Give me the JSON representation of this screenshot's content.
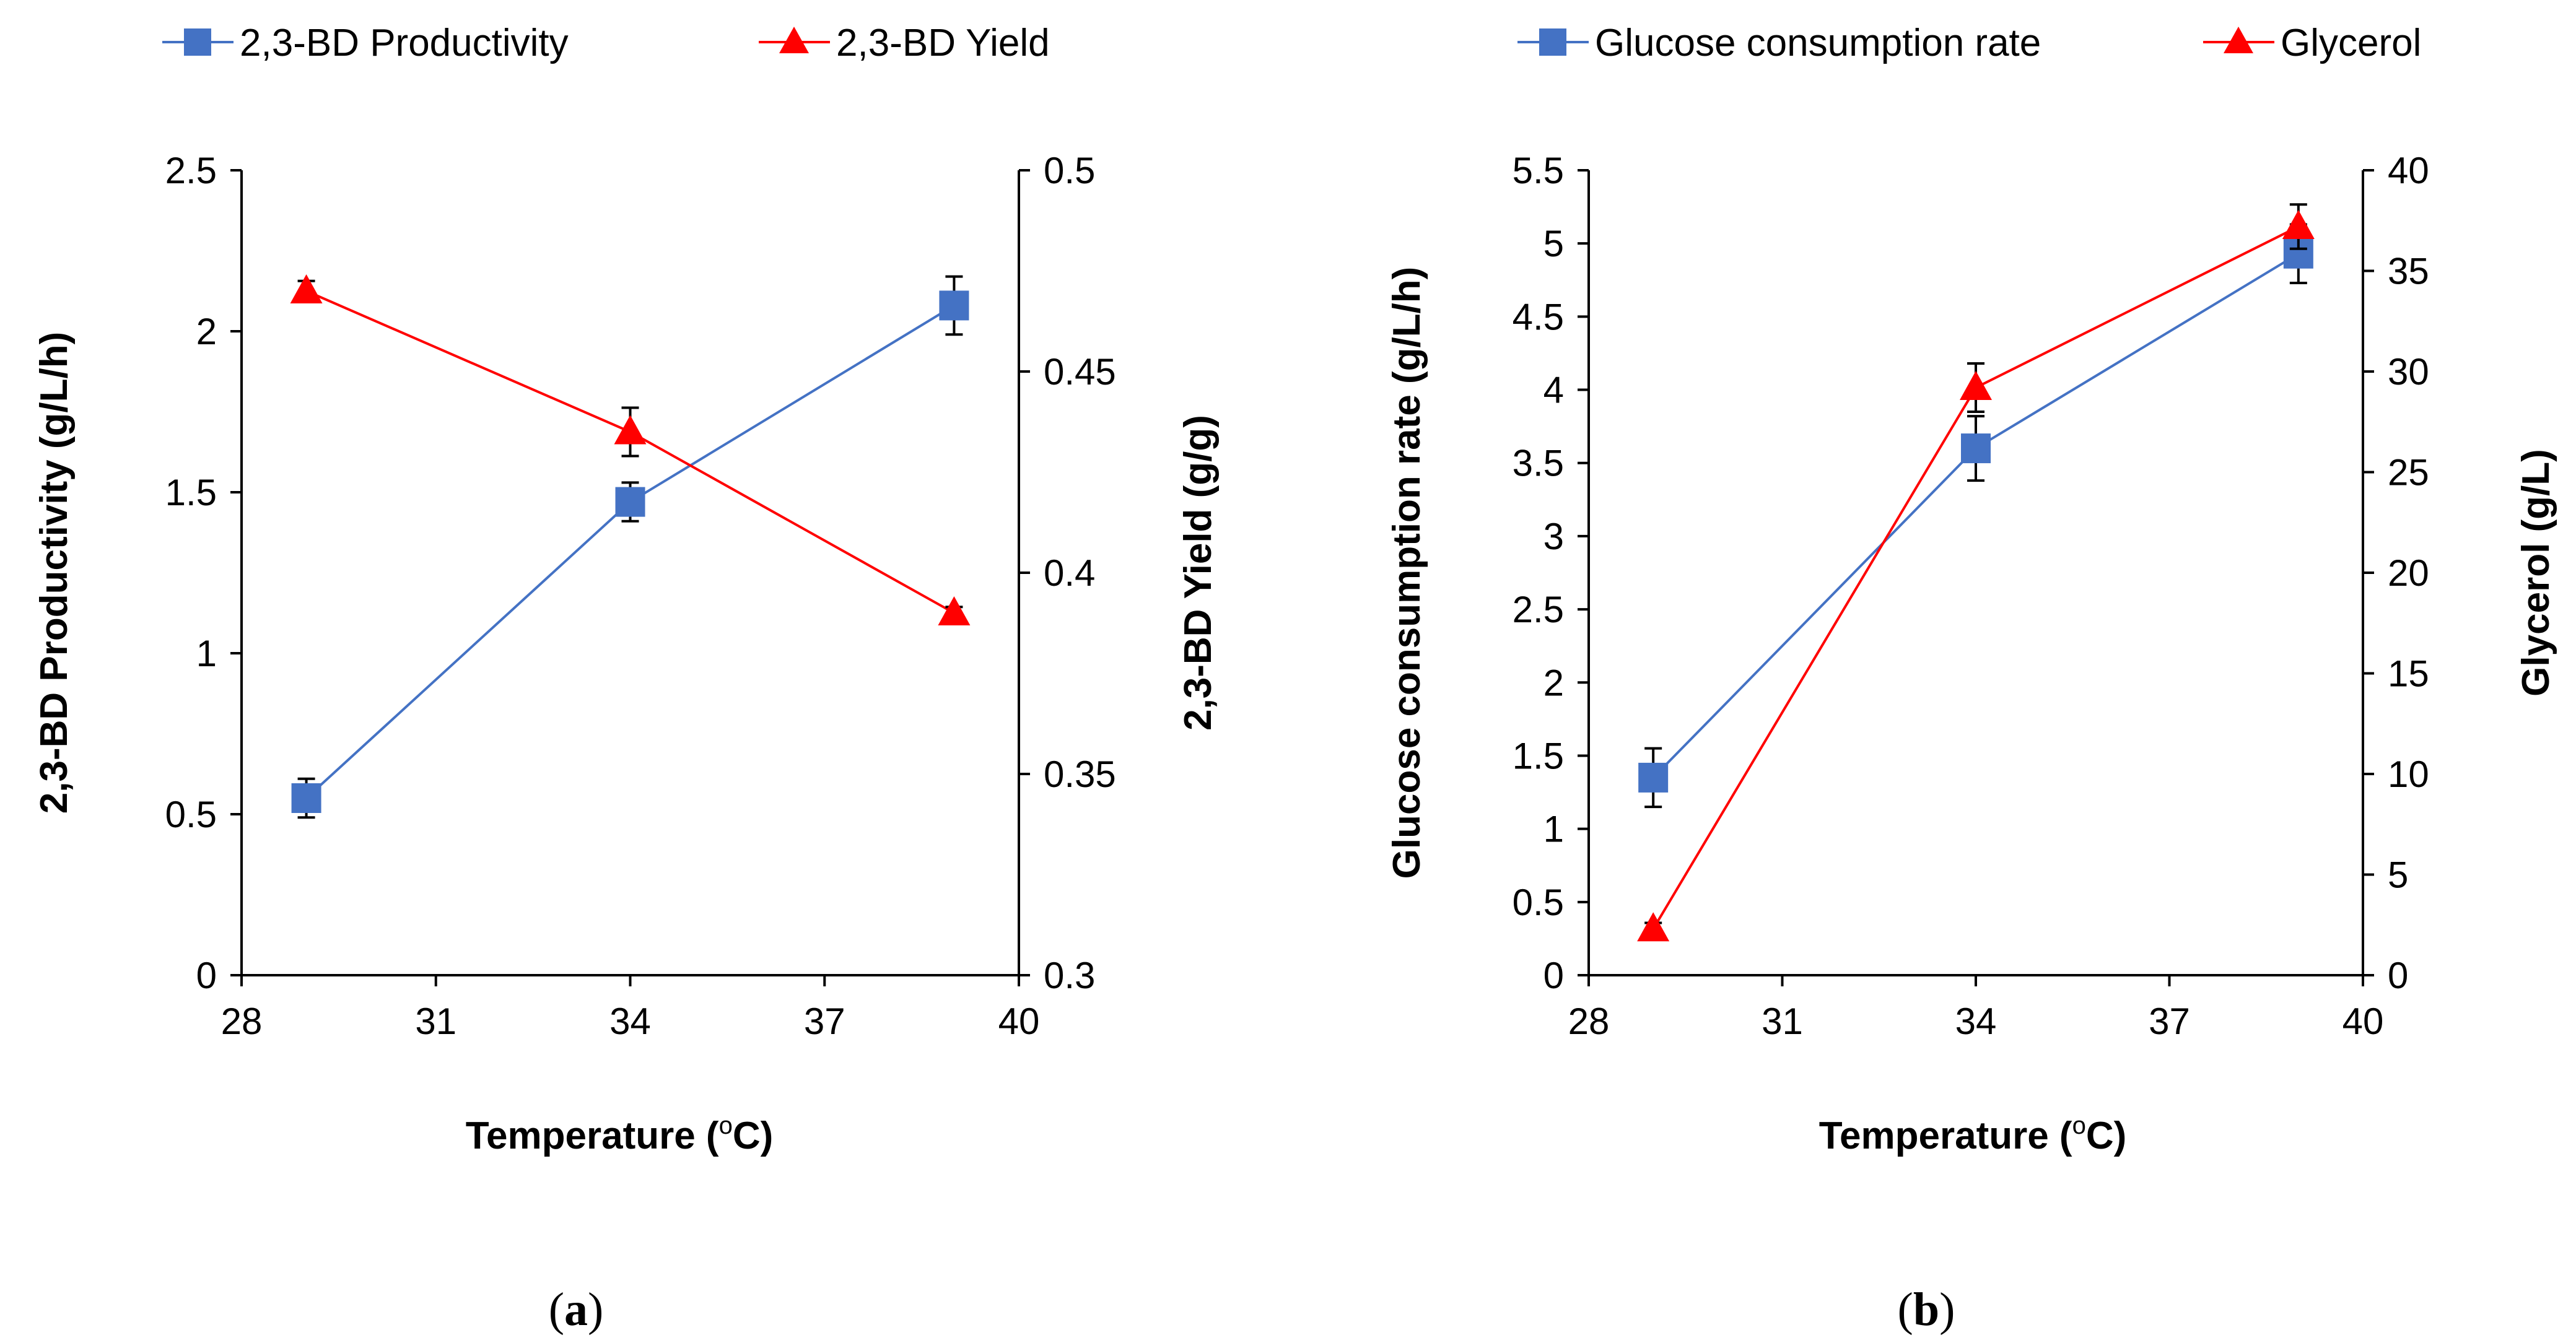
{
  "chart_data": [
    {
      "type": "line",
      "panel_label": "(a)",
      "panel_letter": "a",
      "xlabel_main": "Temperature (",
      "xlabel_sup": "o",
      "xlabel_unit": "C)",
      "x_ticks": [
        "28",
        "31",
        "34",
        "37",
        "40"
      ],
      "xlim": [
        28,
        40
      ],
      "y_left": {
        "label": "2,3-BD Productivity (g/L/h)",
        "ticks": [
          "0",
          "0.5",
          "1",
          "1.5",
          "2",
          "2.5"
        ],
        "lim": [
          0,
          2.5
        ]
      },
      "y_right": {
        "label": "2,3-BD Yield (g/g)",
        "ticks": [
          "0.3",
          "0.35",
          "0.4",
          "0.45",
          "0.5"
        ],
        "lim": [
          0.3,
          0.5
        ]
      },
      "legend_position": "top",
      "series": [
        {
          "name": "2,3-BD Productivity",
          "axis": "left",
          "marker": "square",
          "color": "#4472C4",
          "x": [
            29,
            34,
            39
          ],
          "y": [
            0.55,
            1.47,
            2.08
          ],
          "err": [
            0.06,
            0.06,
            0.09
          ]
        },
        {
          "name": "2,3-BD Yield",
          "axis": "right",
          "marker": "triangle",
          "color": "#FF0000",
          "x": [
            29,
            34,
            39
          ],
          "y": [
            0.47,
            0.435,
            0.39
          ],
          "err": [
            0.0025,
            0.006,
            0.0015
          ]
        }
      ]
    },
    {
      "type": "line",
      "panel_label": "(b)",
      "panel_letter": "b",
      "xlabel_main": "Temperature (",
      "xlabel_sup": "o",
      "xlabel_unit": "C)",
      "x_ticks": [
        "28",
        "31",
        "34",
        "37",
        "40"
      ],
      "xlim": [
        28,
        40
      ],
      "y_left": {
        "label": "Glucose consumption rate (g/L/h)",
        "ticks": [
          "0",
          "0.5",
          "1",
          "1.5",
          "2",
          "2.5",
          "3",
          "3.5",
          "4",
          "4.5",
          "5",
          "5.5"
        ],
        "lim": [
          0,
          5.5
        ]
      },
      "y_right": {
        "label": "Glycerol (g/L)",
        "ticks": [
          "0",
          "5",
          "10",
          "15",
          "20",
          "25",
          "30",
          "35",
          "40"
        ],
        "lim": [
          0,
          40
        ]
      },
      "legend_position": "top",
      "series": [
        {
          "name": "Glucose consumption rate",
          "axis": "left",
          "marker": "square",
          "color": "#4472C4",
          "x": [
            29,
            34,
            39
          ],
          "y": [
            1.35,
            3.6,
            4.93
          ],
          "err": [
            0.2,
            0.22,
            0.2
          ]
        },
        {
          "name": "Glycerol",
          "axis": "right",
          "marker": "triangle",
          "color": "#FF0000",
          "x": [
            29,
            34,
            39
          ],
          "y": [
            2.3,
            29.2,
            37.2
          ],
          "err": [
            0.3,
            1.2,
            1.1
          ]
        }
      ]
    }
  ]
}
